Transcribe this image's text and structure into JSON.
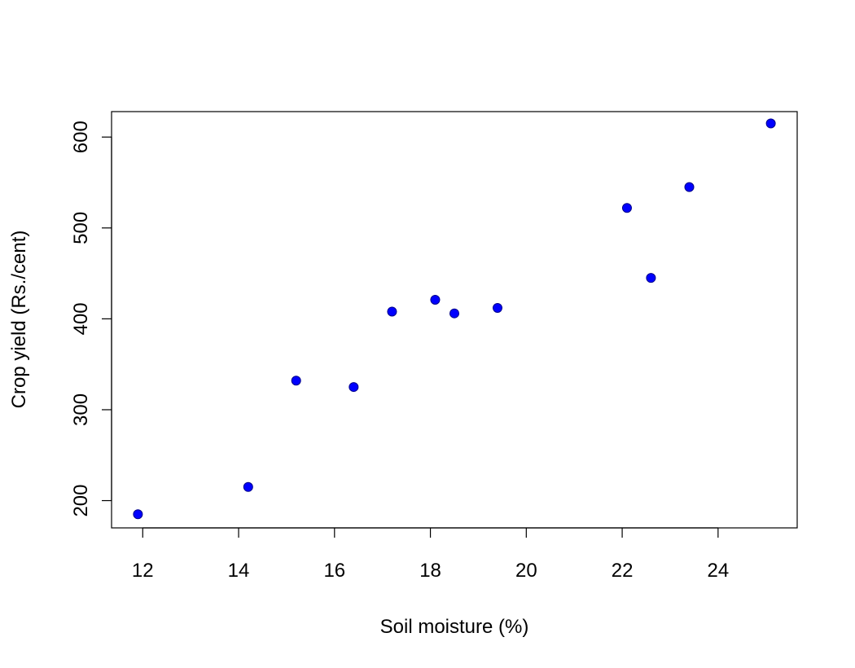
{
  "chart_data": {
    "type": "scatter",
    "title": "",
    "xlabel": "Soil moisture (%)",
    "ylabel": "Crop yield (Rs./cent)",
    "xlim": [
      11.35,
      25.65
    ],
    "ylim": [
      170,
      628
    ],
    "x_ticks": [
      12,
      14,
      16,
      18,
      20,
      22,
      24
    ],
    "y_ticks": [
      200,
      300,
      400,
      500,
      600
    ],
    "grid": false,
    "legend": "none",
    "marker_color": "#0000ff",
    "points": [
      {
        "x": 11.9,
        "y": 185
      },
      {
        "x": 14.2,
        "y": 215
      },
      {
        "x": 15.2,
        "y": 332
      },
      {
        "x": 16.4,
        "y": 325
      },
      {
        "x": 17.2,
        "y": 408
      },
      {
        "x": 18.1,
        "y": 421
      },
      {
        "x": 18.5,
        "y": 406
      },
      {
        "x": 19.4,
        "y": 412
      },
      {
        "x": 22.1,
        "y": 522
      },
      {
        "x": 22.6,
        "y": 445
      },
      {
        "x": 23.4,
        "y": 545
      },
      {
        "x": 25.1,
        "y": 615
      }
    ]
  }
}
